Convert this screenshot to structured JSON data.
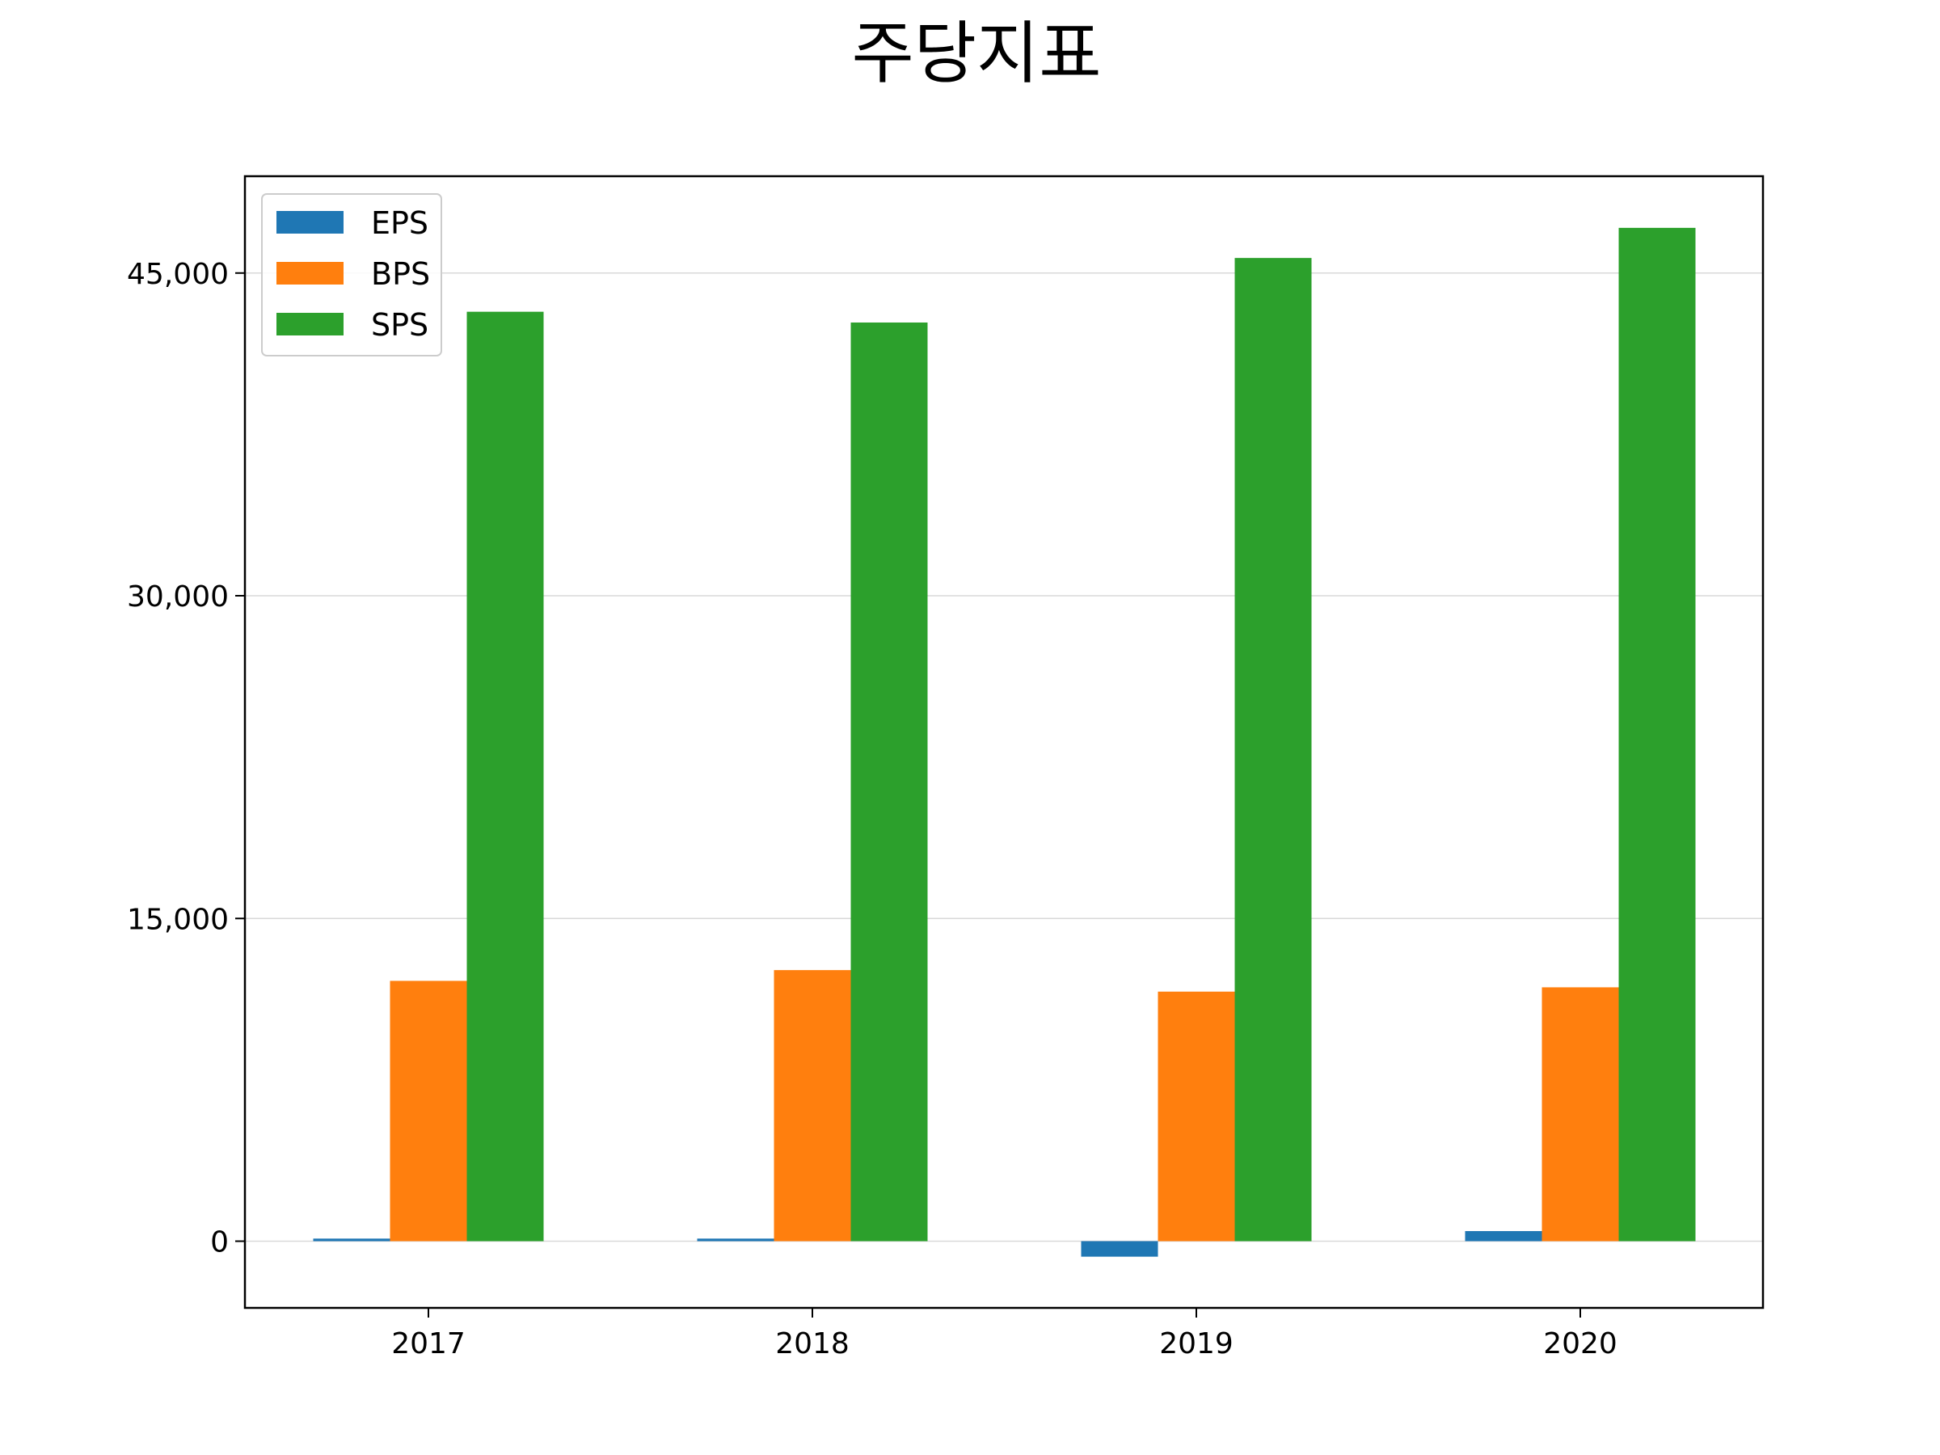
{
  "chart_data": {
    "type": "bar",
    "title": "주당지표",
    "xlabel": "",
    "ylabel": "",
    "categories": [
      "2017",
      "2018",
      "2019",
      "2020"
    ],
    "series": [
      {
        "name": "EPS",
        "color": "#1f77b4",
        "values": [
          120,
          120,
          -720,
          470
        ]
      },
      {
        "name": "BPS",
        "color": "#ff7f0e",
        "values": [
          12100,
          12600,
          11600,
          11800
        ]
      },
      {
        "name": "SPS",
        "color": "#2ca02c",
        "values": [
          43200,
          42700,
          45700,
          47100
        ]
      }
    ],
    "ylim": [
      -3100,
      49500
    ],
    "yticks": [
      0,
      15000,
      30000,
      45000
    ],
    "ytick_labels": [
      "0",
      "15,000",
      "30,000",
      "45,000"
    ],
    "grid": "horizontal",
    "legend_position": "top-left"
  }
}
